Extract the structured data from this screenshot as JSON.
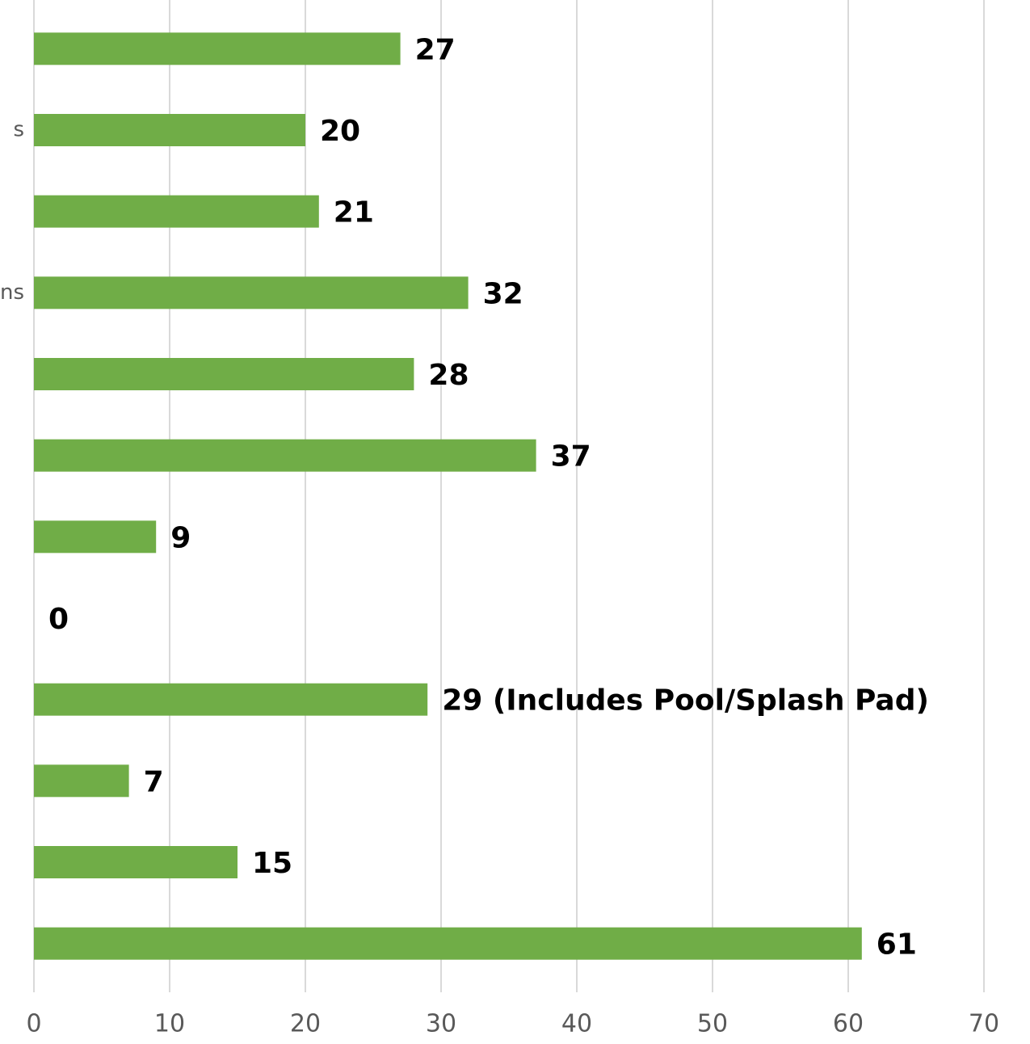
{
  "chart_data": {
    "type": "hbar",
    "categories": [
      null,
      "s",
      null,
      "ns",
      null,
      null,
      null,
      null,
      null,
      null,
      null,
      null
    ],
    "values": [
      27,
      20,
      21,
      32,
      28,
      37,
      9,
      0,
      29,
      7,
      15,
      61
    ],
    "value_labels": [
      "27",
      "20",
      "21",
      "32",
      "28",
      "37",
      "9",
      "0",
      "29 (Includes Pool/Splash Pad)",
      "7",
      "15",
      "61"
    ],
    "color": "#70ad47",
    "xlim": [
      0,
      70
    ],
    "xticks": [
      0,
      10,
      20,
      30,
      40,
      50,
      60,
      70
    ],
    "grid": true
  }
}
